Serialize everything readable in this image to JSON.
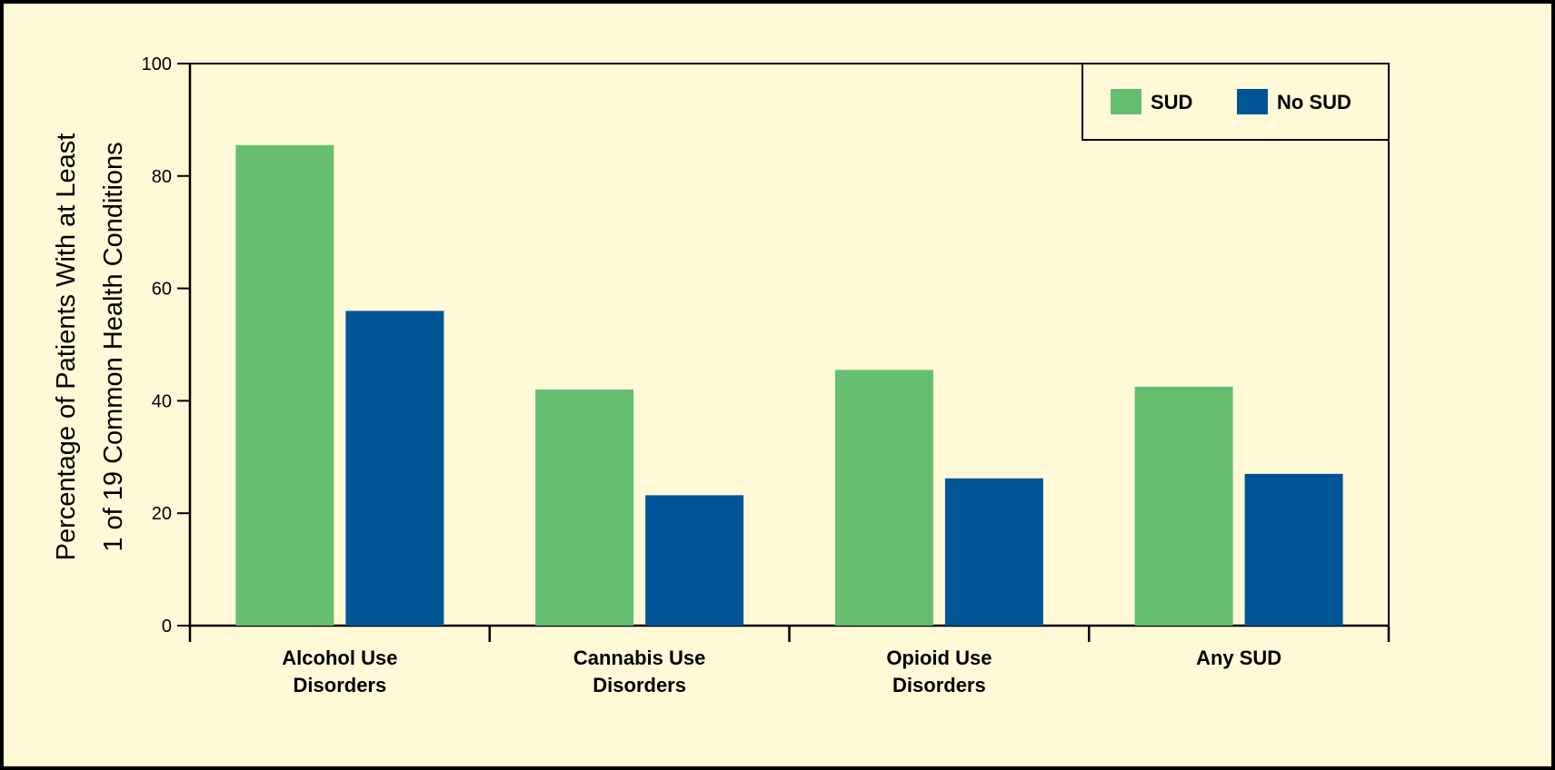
{
  "chart_data": {
    "type": "bar",
    "categories": [
      [
        "Alcohol Use",
        "Disorders"
      ],
      [
        "Cannabis Use",
        "Disorders"
      ],
      [
        "Opioid Use",
        "Disorders"
      ],
      [
        "Any SUD"
      ]
    ],
    "series": [
      {
        "name": "SUD",
        "color": "#66bf71",
        "values": [
          85.5,
          42,
          45.5,
          42.5
        ]
      },
      {
        "name": "No SUD",
        "color": "#005596",
        "values": [
          56,
          23.2,
          26.2,
          27
        ]
      }
    ],
    "ylabel": [
      "Percentage of Patients With at Least",
      "1 of 19 Common Health Conditions"
    ],
    "yticks": [
      0,
      20,
      40,
      60,
      80,
      100
    ],
    "ylim": [
      0,
      100
    ],
    "legend": "top-right",
    "grid": false,
    "background_color": "#fff9d8"
  }
}
